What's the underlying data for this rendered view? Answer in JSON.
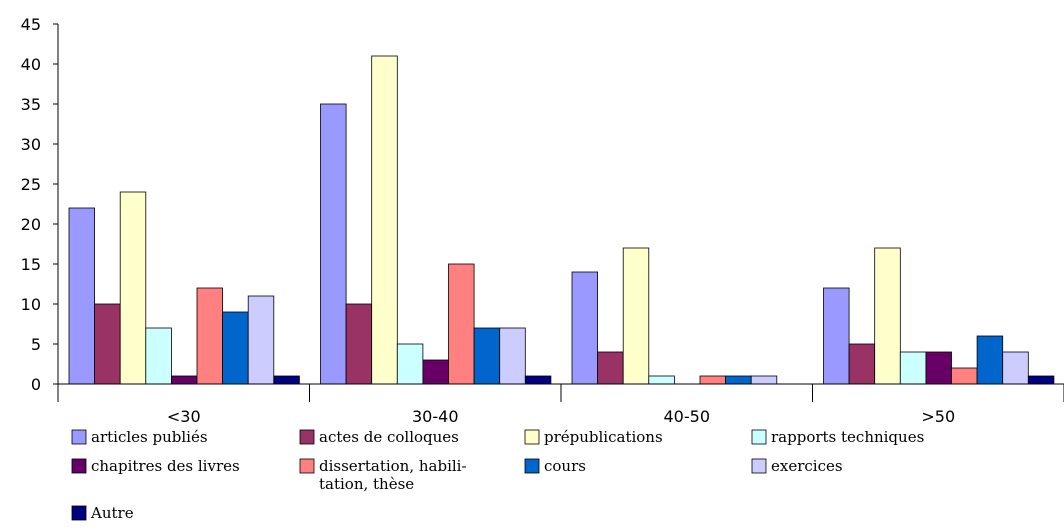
{
  "chart_data": {
    "type": "bar",
    "categories": [
      "<30",
      "30-40",
      "40-50",
      ">50"
    ],
    "ylim": [
      0,
      45
    ],
    "yticks": [
      0,
      5,
      10,
      15,
      20,
      25,
      30,
      35,
      40,
      45
    ],
    "grid": false,
    "legend_position": "bottom",
    "series": [
      {
        "name": "articles publiés",
        "color": "#9999ff",
        "values": [
          22,
          35,
          14,
          12
        ]
      },
      {
        "name": "actes de colloques",
        "color": "#993366",
        "values": [
          10,
          10,
          4,
          5
        ]
      },
      {
        "name": "prépublications",
        "color": "#ffffcc",
        "values": [
          24,
          41,
          17,
          17
        ]
      },
      {
        "name": "rapports  techniques",
        "color": "#ccffff",
        "values": [
          7,
          5,
          1,
          4
        ]
      },
      {
        "name": "chapitres des livres",
        "color": "#660066",
        "values": [
          1,
          3,
          0,
          4
        ]
      },
      {
        "name": "dissertation, habilitation, thèse",
        "legend_lines": [
          "dissertation, habili-",
          "tation, thèse"
        ],
        "color": "#ff8080",
        "values": [
          12,
          15,
          1,
          2
        ]
      },
      {
        "name": "cours",
        "color": "#0066cc",
        "values": [
          9,
          7,
          1,
          6
        ]
      },
      {
        "name": "exercices",
        "color": "#ccccff",
        "values": [
          11,
          7,
          1,
          4
        ]
      },
      {
        "name": "Autre",
        "color": "#000080",
        "values": [
          1,
          1,
          0,
          1
        ]
      }
    ]
  }
}
